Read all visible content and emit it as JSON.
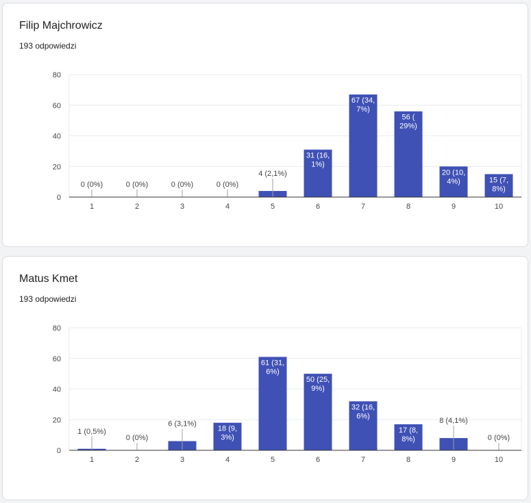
{
  "charts": [
    {
      "title": "Filip Majchrowicz",
      "responses": "193 odpowiedzi"
    },
    {
      "title": "Matus Kmet",
      "responses": "193 odpowiedzi"
    }
  ],
  "colors": {
    "bar": "#3f51b5",
    "grid": "#e8eaed",
    "axis": "#bdbdbd",
    "text": "#444444"
  },
  "chart_data": [
    {
      "type": "bar",
      "title": "Filip Majchrowicz",
      "subtitle": "193 odpowiedzi",
      "categories": [
        "1",
        "2",
        "3",
        "4",
        "5",
        "6",
        "7",
        "8",
        "9",
        "10"
      ],
      "values": [
        0,
        0,
        0,
        0,
        4,
        31,
        67,
        56,
        20,
        15
      ],
      "labels": [
        [
          "0 (0%)"
        ],
        [
          "0 (0%)"
        ],
        [
          "0 (0%)"
        ],
        [
          "0 (0%)"
        ],
        [
          "4 (2,1%)"
        ],
        [
          "31 (16,",
          "1%)"
        ],
        [
          "67 (34,",
          "7%)"
        ],
        [
          "56 (",
          "29%)"
        ],
        [
          "20 (10,",
          "4%)"
        ],
        [
          "15 (7,",
          "8%)"
        ]
      ],
      "yticks": [
        0,
        20,
        40,
        60,
        80
      ],
      "ylim": [
        0,
        80
      ],
      "grid": true
    },
    {
      "type": "bar",
      "title": "Matus Kmet",
      "subtitle": "193 odpowiedzi",
      "categories": [
        "1",
        "2",
        "3",
        "4",
        "5",
        "6",
        "7",
        "8",
        "9",
        "10"
      ],
      "values": [
        1,
        0,
        6,
        18,
        61,
        50,
        32,
        17,
        8,
        0
      ],
      "labels": [
        [
          "1 (0,5%)"
        ],
        [
          "0 (0%)"
        ],
        [
          "6 (3,1%)"
        ],
        [
          "18 (9,",
          "3%)"
        ],
        [
          "61 (31,",
          "6%)"
        ],
        [
          "50 (25,",
          "9%)"
        ],
        [
          "32 (16,",
          "6%)"
        ],
        [
          "17 (8,",
          "8%)"
        ],
        [
          "8 (4,1%)"
        ],
        [
          "0 (0%)"
        ]
      ],
      "yticks": [
        0,
        20,
        40,
        60,
        80
      ],
      "ylim": [
        0,
        80
      ],
      "grid": true
    }
  ]
}
